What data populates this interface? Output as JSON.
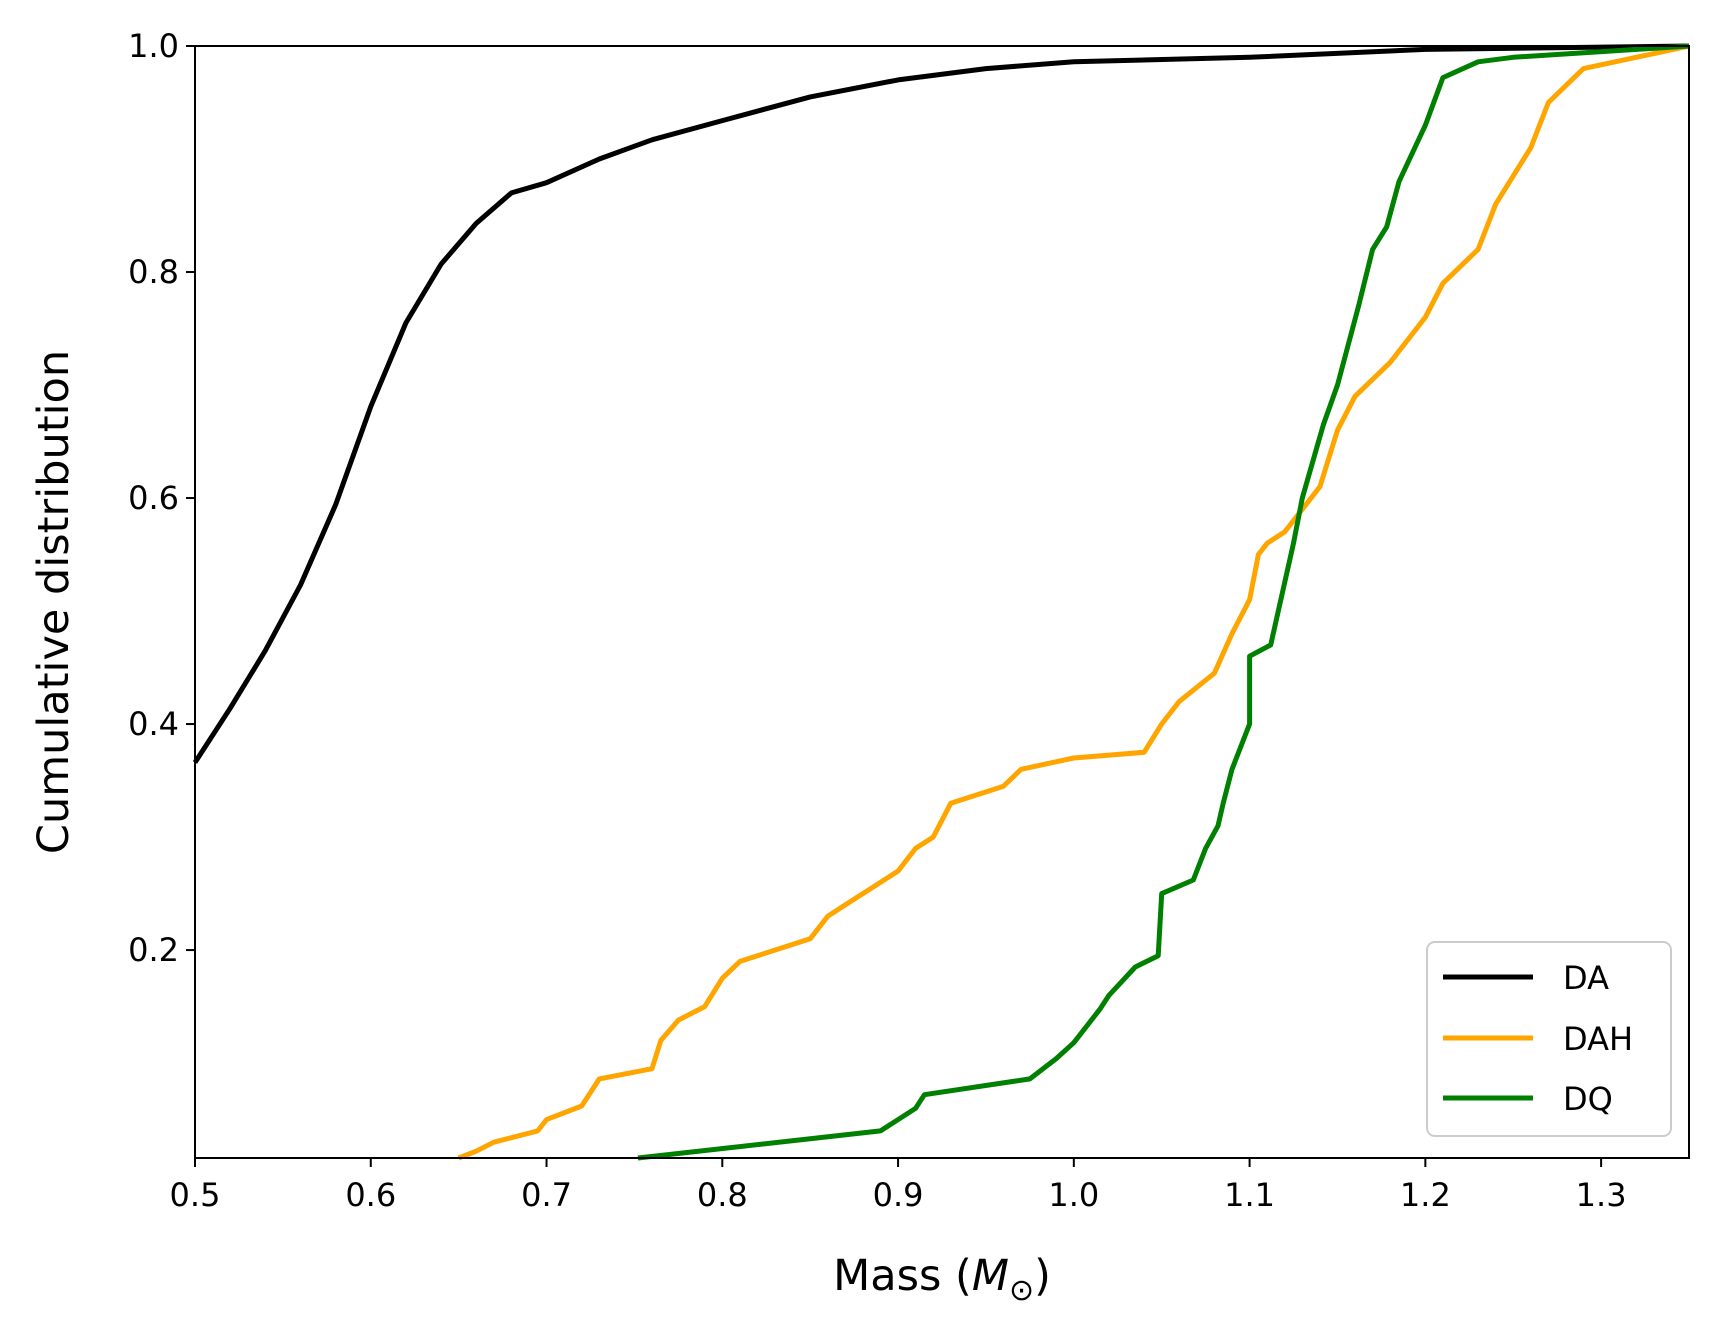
{
  "chart_data": {
    "type": "line",
    "title": "",
    "xlabel": "Mass (",
    "xlabel_symbol": "M",
    "xlabel_sub": "⊙",
    "xlabel_close": ")",
    "ylabel": "Cumulative distribution",
    "xlim": [
      0.5,
      1.35
    ],
    "ylim": [
      0.016,
      1.0
    ],
    "xticks": [
      0.5,
      0.6,
      0.7,
      0.8,
      0.9,
      1.0,
      1.1,
      1.2,
      1.3
    ],
    "xtick_labels": [
      "0.5",
      "0.6",
      "0.7",
      "0.8",
      "0.9",
      "1.0",
      "1.1",
      "1.2",
      "1.3"
    ],
    "yticks": [
      0.2,
      0.4,
      0.6,
      0.8,
      1.0
    ],
    "ytick_labels": [
      "0.2",
      "0.4",
      "0.6",
      "0.8",
      "1.0"
    ],
    "grid": false,
    "legend_position": "lower-right",
    "series": [
      {
        "name": "DA",
        "color": "#000000",
        "x": [
          0.5,
          0.52,
          0.54,
          0.56,
          0.58,
          0.6,
          0.62,
          0.64,
          0.66,
          0.68,
          0.7,
          0.73,
          0.76,
          0.8,
          0.85,
          0.9,
          0.95,
          1.0,
          1.1,
          1.2,
          1.35
        ],
        "y": [
          0.366,
          0.414,
          0.465,
          0.523,
          0.594,
          0.681,
          0.755,
          0.807,
          0.843,
          0.87,
          0.879,
          0.9,
          0.917,
          0.934,
          0.955,
          0.97,
          0.98,
          0.986,
          0.99,
          0.997,
          1.0
        ]
      },
      {
        "name": "DAH",
        "color": "#ffa500",
        "x": [
          0.65,
          0.66,
          0.67,
          0.695,
          0.7,
          0.72,
          0.73,
          0.76,
          0.765,
          0.775,
          0.79,
          0.8,
          0.81,
          0.85,
          0.86,
          0.87,
          0.89,
          0.9,
          0.91,
          0.92,
          0.93,
          0.96,
          0.97,
          1.0,
          1.04,
          1.05,
          1.06,
          1.08,
          1.09,
          1.1,
          1.105,
          1.11,
          1.12,
          1.14,
          1.15,
          1.16,
          1.18,
          1.2,
          1.21,
          1.23,
          1.24,
          1.26,
          1.27,
          1.29,
          1.32,
          1.35
        ],
        "y": [
          0.016,
          0.022,
          0.03,
          0.04,
          0.05,
          0.062,
          0.086,
          0.095,
          0.12,
          0.138,
          0.15,
          0.175,
          0.19,
          0.21,
          0.23,
          0.24,
          0.26,
          0.27,
          0.29,
          0.3,
          0.33,
          0.345,
          0.36,
          0.37,
          0.375,
          0.4,
          0.42,
          0.445,
          0.48,
          0.51,
          0.55,
          0.56,
          0.57,
          0.61,
          0.66,
          0.69,
          0.72,
          0.76,
          0.79,
          0.82,
          0.86,
          0.91,
          0.95,
          0.98,
          0.99,
          1.0
        ]
      },
      {
        "name": "DQ",
        "color": "#008000",
        "x": [
          0.752,
          0.89,
          0.91,
          0.915,
          0.975,
          0.99,
          1.0,
          1.015,
          1.02,
          1.035,
          1.048,
          1.05,
          1.068,
          1.075,
          1.082,
          1.085,
          1.09,
          1.1,
          1.1,
          1.112,
          1.125,
          1.13,
          1.142,
          1.15,
          1.162,
          1.17,
          1.178,
          1.185,
          1.2,
          1.21,
          1.23,
          1.25,
          1.35
        ],
        "y": [
          0.016,
          0.04,
          0.06,
          0.072,
          0.086,
          0.104,
          0.118,
          0.148,
          0.16,
          0.185,
          0.195,
          0.25,
          0.262,
          0.29,
          0.31,
          0.33,
          0.36,
          0.4,
          0.46,
          0.47,
          0.56,
          0.6,
          0.665,
          0.7,
          0.77,
          0.82,
          0.84,
          0.88,
          0.93,
          0.972,
          0.986,
          0.99,
          1.0
        ]
      }
    ]
  }
}
